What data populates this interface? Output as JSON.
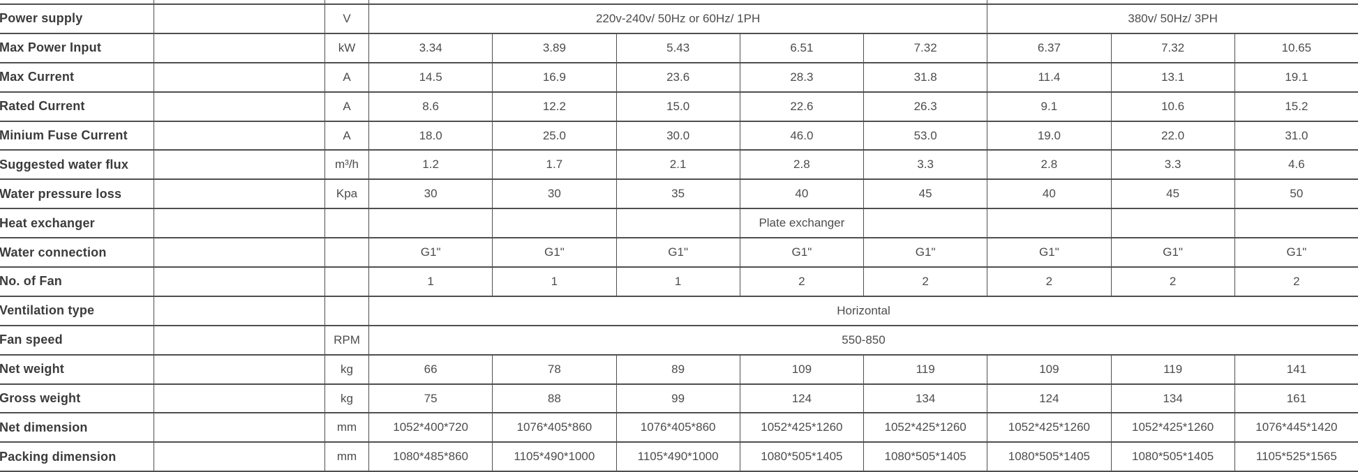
{
  "colors": {
    "background": "#ffffff",
    "border": "#4e4e4e",
    "label_text": "#3b3b3b",
    "value_text": "#4c4c4c"
  },
  "table": {
    "description": "equipment specification table",
    "rows": [
      {
        "label": "Power supply",
        "unit": "V",
        "cells": [
          {
            "text": "220v-240v/ 50Hz or 60Hz/ 1PH",
            "span": 5
          },
          {
            "text": "380v/ 50Hz/ 3PH",
            "span": 3
          }
        ]
      },
      {
        "label": "Max Power Input",
        "unit": "kW",
        "cells": [
          "3.34",
          "3.89",
          "5.43",
          "6.51",
          "7.32",
          "6.37",
          "7.32",
          "10.65"
        ]
      },
      {
        "label": "Max Current",
        "unit": "A",
        "cells": [
          "14.5",
          "16.9",
          "23.6",
          "28.3",
          "31.8",
          "11.4",
          "13.1",
          "19.1"
        ]
      },
      {
        "label": "Rated Current",
        "unit": "A",
        "cells": [
          "8.6",
          "12.2",
          "15.0",
          "22.6",
          "26.3",
          "9.1",
          "10.6",
          "15.2"
        ]
      },
      {
        "label": "Minium Fuse Current",
        "unit": "A",
        "cells": [
          "18.0",
          "25.0",
          "30.0",
          "46.0",
          "53.0",
          "19.0",
          "22.0",
          "31.0"
        ]
      },
      {
        "label": "Suggested water flux",
        "unit": "m³/h",
        "cells": [
          "1.2",
          "1.7",
          "2.1",
          "2.8",
          "3.3",
          "2.8",
          "3.3",
          "4.6"
        ]
      },
      {
        "label": "Water pressure loss",
        "unit": "Kpa",
        "cells": [
          "30",
          "30",
          "35",
          "40",
          "45",
          "40",
          "45",
          "50"
        ]
      },
      {
        "label": "Heat exchanger",
        "unit": "",
        "cells": [
          "",
          "",
          "",
          "Plate exchanger",
          "",
          "",
          "",
          ""
        ]
      },
      {
        "label": "Water connection",
        "unit": "",
        "cells": [
          "G1\"",
          "G1\"",
          "G1\"",
          "G1\"",
          "G1\"",
          "G1\"",
          "G1\"",
          "G1\""
        ]
      },
      {
        "label": "No. of Fan",
        "unit": "",
        "cells": [
          "1",
          "1",
          "1",
          "2",
          "2",
          "2",
          "2",
          "2"
        ]
      },
      {
        "label": "Ventilation type",
        "unit": "",
        "cells": [
          {
            "text": "Horizontal",
            "span": 8
          }
        ]
      },
      {
        "label": "Fan speed",
        "unit": "RPM",
        "cells": [
          {
            "text": "550-850",
            "span": 8
          }
        ]
      },
      {
        "label": "Net weight",
        "unit": "kg",
        "cells": [
          "66",
          "78",
          "89",
          "109",
          "119",
          "109",
          "119",
          "141"
        ]
      },
      {
        "label": "Gross weight",
        "unit": "kg",
        "cells": [
          "75",
          "88",
          "99",
          "124",
          "134",
          "124",
          "134",
          "161"
        ]
      },
      {
        "label": "Net dimension",
        "unit": "mm",
        "cells": [
          "1052*400*720",
          "1076*405*860",
          "1076*405*860",
          "1052*425*1260",
          "1052*425*1260",
          "1052*425*1260",
          "1052*425*1260",
          "1076*445*1420"
        ]
      },
      {
        "label": "Packing dimension",
        "unit": "mm",
        "cells": [
          "1080*485*860",
          "1105*490*1000",
          "1105*490*1000",
          "1080*505*1405",
          "1080*505*1405",
          "1080*505*1405",
          "1080*505*1405",
          "1105*525*1565"
        ]
      }
    ]
  }
}
